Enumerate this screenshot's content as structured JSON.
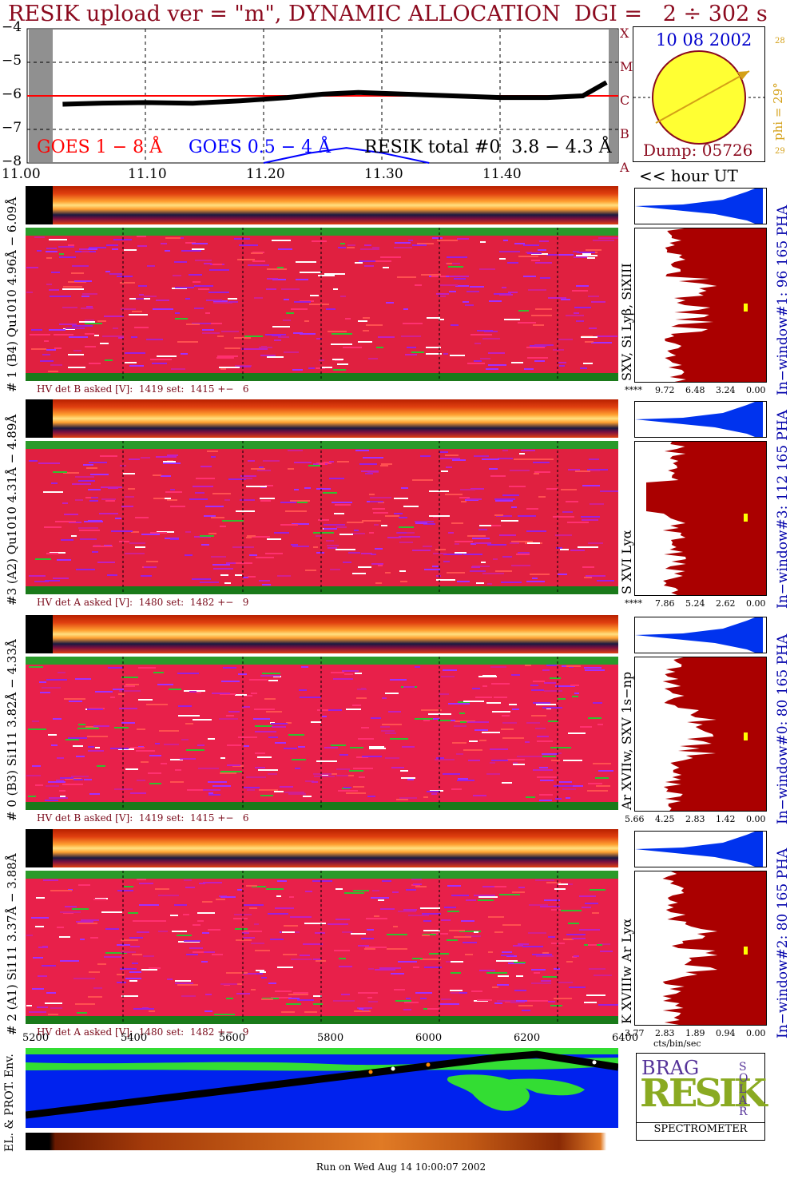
{
  "title": "RESIK upload ver = \"m\", DYNAMIC ALLOCATION  DGI =   2 ÷ 302 s",
  "goes_panel": {
    "y_ticks": [
      "−4",
      "−5",
      "−6",
      "−7",
      "−8"
    ],
    "class_labels": [
      "X",
      "M",
      "C",
      "B",
      "A"
    ],
    "legend_goes18": "GOES 1 − 8 Å",
    "legend_goes054": "GOES 0.5 − 4 Å",
    "legend_resik": "RESIK total #0  3.8 − 4.3 Å",
    "colors": {
      "goes18": "#ff0000",
      "goes054": "#0000ff",
      "resik": "#000000"
    }
  },
  "time_axis": {
    "labels": [
      "11.00",
      "11.10",
      "11.20",
      "11.30",
      "11.40"
    ],
    "unit_label": "<< hour UT"
  },
  "sun_panel": {
    "date": "10 08 2002",
    "dump": "Dump: 05726",
    "phi": "phi = 29°",
    "tick_top": "28",
    "tick_bottom": "29"
  },
  "channels": [
    {
      "side_label": "# 1 (B4) Qu1010 4.96Å − 6.09Å",
      "lines_label": "SXV, Si Lyβ, SiXIII",
      "window_label": "In−window#1:  96 165 PHA",
      "hv": "HV det B asked [V]:  1419 set:  1415 +−   6",
      "pha_ticks": [
        "****",
        "9.72",
        "6.48",
        "3.24",
        "0.00"
      ]
    },
    {
      "side_label": "#3 (A2) Qu1010  4.31Å − 4.89Å",
      "lines_label": "S XVI Lyα",
      "window_label": "In−window#3:  112 165 PHA",
      "hv": "HV det A asked [V]:  1480 set:  1482 +−   9",
      "pha_ticks": [
        "****",
        "7.86",
        "5.24",
        "2.62",
        "0.00"
      ]
    },
    {
      "side_label": "# 0 (B3) Si111  3.82Å − 4.33Å",
      "lines_label": "Ar XVIIw,  SXV 1s−np",
      "window_label": "In−window#0:  80 165 PHA",
      "hv": "HV det B asked [V]:  1419 set:  1415 +−   6",
      "pha_ticks": [
        "5.66",
        "4.25",
        "2.83",
        "1.42",
        "0.00"
      ]
    },
    {
      "side_label": "# 2 (A1) Si111  3.37Å − 3.88Å",
      "lines_label": "K XVIIIw  Ar Lyα",
      "window_label": "In−window#2:  80 165 PHA",
      "hv": "HV det A asked [V]:  1480 set:  1482 +−   9",
      "pha_ticks": [
        "3.77",
        "2.83",
        "1.89",
        "0.94",
        "0.00"
      ]
    }
  ],
  "orbit_axis": {
    "labels": [
      "5200",
      "5400",
      "5600",
      "5800",
      "6000",
      "6200",
      "6400"
    ]
  },
  "pha_unit": "cts/bin/sec",
  "env_label": "EL. & PROT. Env.",
  "logo": {
    "sub": "SPECTROMETER",
    "letters": "RESIK",
    "top": "BRAG",
    "side": "SOLAR"
  },
  "footer": "Run on Wed Aug 14 10:00:07 2002",
  "chart_data": {
    "type": "line",
    "title": "RESIK upload ver = \"m\", DYNAMIC ALLOCATION  DGI =   2 ÷ 302 s",
    "xlabel": "<< hour UT",
    "ylabel": "",
    "ylim": [
      -8,
      -4
    ],
    "xlim": [
      11.0,
      11.5
    ],
    "series": [
      {
        "name": "GOES 1 − 8 Å",
        "x": [
          11.0,
          11.5
        ],
        "y": [
          -6.0,
          -6.0
        ]
      },
      {
        "name": "RESIK total #0  3.8 − 4.3 Å",
        "x": [
          11.03,
          11.06,
          11.1,
          11.14,
          11.18,
          11.22,
          11.25,
          11.28,
          11.32,
          11.36,
          11.4,
          11.44,
          11.47,
          11.49
        ],
        "y": [
          -6.25,
          -6.22,
          -6.2,
          -6.22,
          -6.15,
          -6.05,
          -5.95,
          -5.9,
          -5.95,
          -6.0,
          -6.05,
          -6.05,
          -6.0,
          -5.6
        ]
      },
      {
        "name": "GOES 0.5 − 4 Å",
        "x": [
          11.2,
          11.24,
          11.27,
          11.3,
          11.34
        ],
        "y": [
          -8.0,
          -7.7,
          -7.55,
          -7.7,
          -8.0
        ]
      }
    ]
  }
}
